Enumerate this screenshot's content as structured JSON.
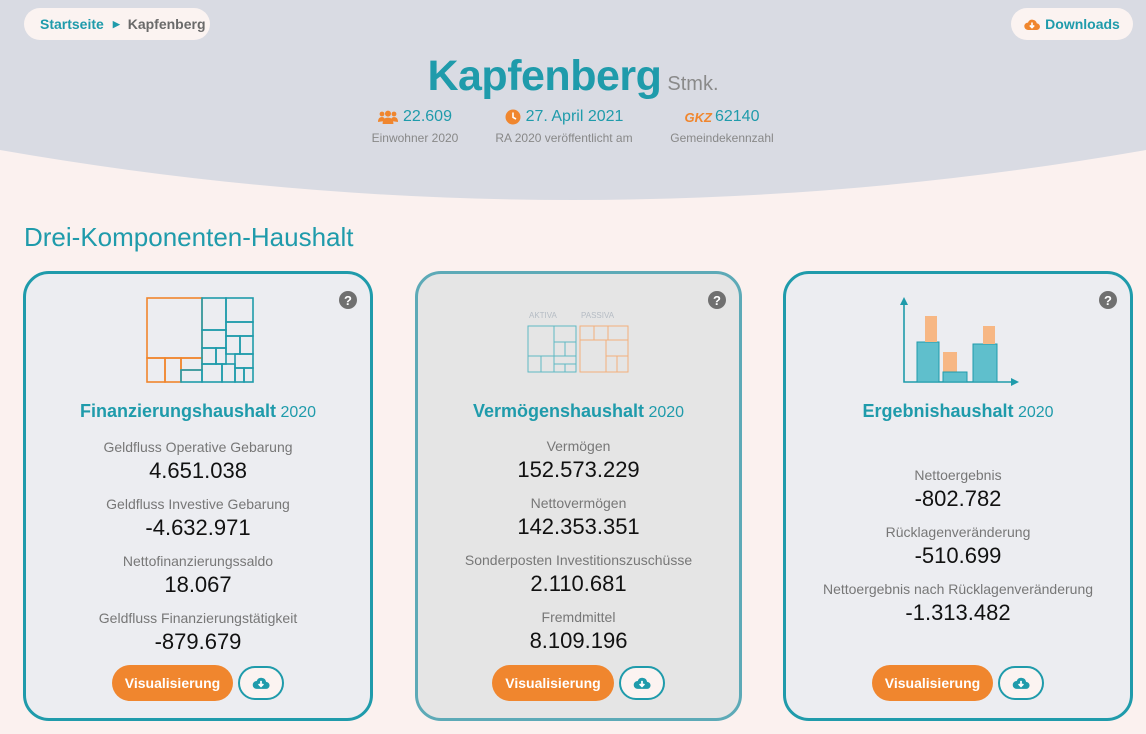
{
  "breadcrumb": {
    "home": "Startseite",
    "current": "Kapfenberg"
  },
  "header": {
    "downloads_label": "Downloads",
    "city": "Kapfenberg",
    "state": "Stmk.",
    "stats": [
      {
        "icon": "people-icon",
        "value": "22.609",
        "label": "Einwohner 2020"
      },
      {
        "icon": "clock-icon",
        "value": "27. April 2021",
        "label": "RA 2020 veröffentlicht am"
      },
      {
        "icon": "gkz-icon",
        "prefix": "GKZ",
        "value": "62140",
        "label": "Gemeindekennzahl"
      }
    ]
  },
  "section_title": "Drei-Komponenten-Haushalt",
  "cards": [
    {
      "title": "Finanzierungshaushalt",
      "year": "2020",
      "kpis": [
        {
          "label": "Geldfluss Operative Gebarung",
          "value": "4.651.038"
        },
        {
          "label": "Geldfluss Investive Gebarung",
          "value": "-4.632.971"
        },
        {
          "label": "Nettofinanzierungssaldo",
          "value": "18.067"
        },
        {
          "label": "Geldfluss Finanzierungstätigkeit",
          "value": "-879.679"
        }
      ],
      "button_label": "Visualisierung"
    },
    {
      "title": "Vermögenshaushalt",
      "year": "2020",
      "icon_labels": {
        "left": "AKTIVA",
        "right": "PASSIVA"
      },
      "kpis": [
        {
          "label": "Vermögen",
          "value": "152.573.229"
        },
        {
          "label": "Nettovermögen",
          "value": "142.353.351"
        },
        {
          "label": "Sonderposten Investitionszuschüsse",
          "value": "2.110.681"
        },
        {
          "label": "Fremdmittel",
          "value": "8.109.196"
        }
      ],
      "button_label": "Visualisierung"
    },
    {
      "title": "Ergebnishaushalt",
      "year": "2020",
      "kpis": [
        {
          "label": "Nettoergebnis",
          "value": "-802.782"
        },
        {
          "label": "Rücklagenveränderung",
          "value": "-510.699"
        },
        {
          "label": "Nettoergebnis nach Rücklagenveränderung",
          "value": "-1.313.482"
        }
      ],
      "button_label": "Visualisierung"
    }
  ],
  "help_symbol": "?",
  "colors": {
    "accent": "#1f9bab",
    "orange": "#f0862e",
    "header_bg": "#d9dbe3",
    "page_bg": "#fbf1ef"
  }
}
